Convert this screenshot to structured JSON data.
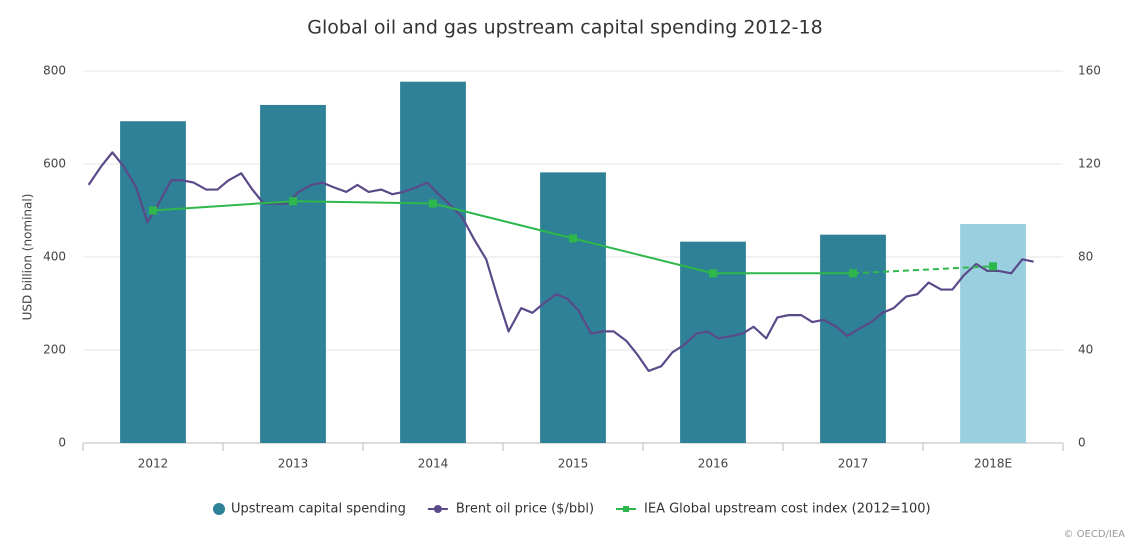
{
  "chart_data": {
    "type": "bar",
    "title": "Global oil and gas upstream capital spending 2012-18",
    "y_label": "USD billion (nominal)",
    "categories": [
      "2012",
      "2013",
      "2014",
      "2015",
      "2016",
      "2017",
      "2018E"
    ],
    "ylim": [
      0,
      800
    ],
    "yticks": [
      0,
      200,
      400,
      600,
      800
    ],
    "y2lim": [
      0,
      160
    ],
    "y2ticks": [
      0,
      40,
      80,
      120,
      160
    ],
    "xlim": [
      2012,
      2019
    ],
    "grid": true,
    "series": [
      {
        "name": "Upstream capital spending",
        "type": "bar",
        "colors": [
          "#2e8196",
          "#2e8196",
          "#2e8196",
          "#2e8196",
          "#2e8196",
          "#2e8196",
          "#9acfe0"
        ],
        "values": [
          692,
          727,
          777,
          582,
          433,
          448,
          471
        ]
      },
      {
        "name": "Brent oil price ($/bbl)",
        "type": "line",
        "axis": "y2",
        "color": "#5b4a8a",
        "x": [
          2012.04,
          2012.13,
          2012.21,
          2012.29,
          2012.38,
          2012.46,
          2012.54,
          2012.63,
          2012.71,
          2012.79,
          2012.88,
          2012.96,
          2013.04,
          2013.13,
          2013.21,
          2013.29,
          2013.38,
          2013.46,
          2013.54,
          2013.63,
          2013.71,
          2013.79,
          2013.88,
          2013.96,
          2014.04,
          2014.13,
          2014.21,
          2014.29,
          2014.38,
          2014.46,
          2014.54,
          2014.63,
          2014.71,
          2014.79,
          2014.88,
          2014.96,
          2015.04,
          2015.13,
          2015.21,
          2015.29,
          2015.38,
          2015.46,
          2015.54,
          2015.63,
          2015.71,
          2015.79,
          2015.88,
          2015.96,
          2016.04,
          2016.13,
          2016.21,
          2016.29,
          2016.38,
          2016.46,
          2016.54,
          2016.63,
          2016.71,
          2016.79,
          2016.88,
          2016.96,
          2017.04,
          2017.13,
          2017.21,
          2017.29,
          2017.38,
          2017.46,
          2017.54,
          2017.63,
          2017.71,
          2017.79,
          2017.88,
          2017.96,
          2018.04,
          2018.13,
          2018.21,
          2018.29,
          2018.38,
          2018.46,
          2018.54,
          2018.63,
          2018.71,
          2018.79
        ],
        "values": [
          111,
          119,
          125,
          119,
          110,
          95,
          103,
          113,
          113,
          112,
          109,
          109,
          113,
          116,
          109,
          103,
          103,
          103,
          108,
          111,
          112,
          110,
          108,
          111,
          108,
          109,
          107,
          108,
          110,
          112,
          107,
          102,
          97,
          88,
          79,
          63,
          48,
          58,
          56,
          60,
          64,
          62,
          57,
          47,
          48,
          48,
          44,
          38,
          31,
          33,
          39,
          42,
          47,
          48,
          45,
          46,
          47,
          50,
          45,
          54,
          55,
          55,
          52,
          53,
          50,
          46,
          49,
          52,
          56,
          58,
          63,
          64,
          69,
          66,
          66,
          72,
          77,
          74,
          74,
          73,
          79,
          78
        ]
      },
      {
        "name": "IEA Global upstream cost index (2012=100)",
        "type": "line",
        "axis": "y2",
        "color": "#2eb84c",
        "dash_last_segment": true,
        "values": [
          100,
          104,
          103,
          88,
          73,
          73,
          76
        ]
      }
    ],
    "source": "© OECD/IEA"
  }
}
